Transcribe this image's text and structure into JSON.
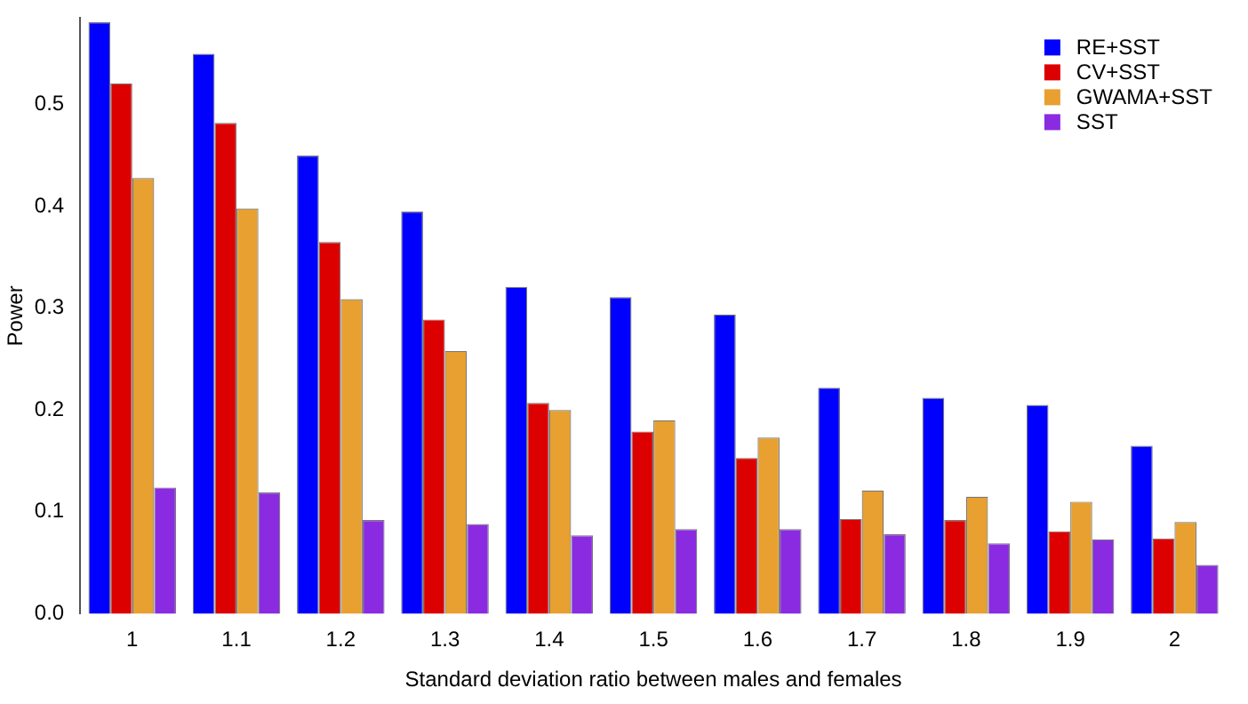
{
  "chart_data": {
    "type": "bar",
    "xlabel": "Standard deviation ratio between males and females",
    "ylabel": "Power",
    "categories": [
      "1",
      "1.1",
      "1.2",
      "1.3",
      "1.4",
      "1.5",
      "1.6",
      "1.7",
      "1.8",
      "1.9",
      "2"
    ],
    "series": [
      {
        "name": "RE+SST",
        "color": "#0000ff",
        "values": [
          0.581,
          0.55,
          0.45,
          0.395,
          0.321,
          0.311,
          0.294,
          0.222,
          0.212,
          0.205,
          0.165
        ]
      },
      {
        "name": "CV+SST",
        "color": "#dd0000",
        "values": [
          0.521,
          0.482,
          0.365,
          0.289,
          0.207,
          0.179,
          0.153,
          0.093,
          0.092,
          0.081,
          0.074
        ]
      },
      {
        "name": "GWAMA+SST",
        "color": "#e8a030",
        "values": [
          0.428,
          0.398,
          0.309,
          0.258,
          0.2,
          0.19,
          0.173,
          0.121,
          0.115,
          0.11,
          0.09
        ]
      },
      {
        "name": "SST",
        "color": "#8a2be2",
        "values": [
          0.124,
          0.119,
          0.092,
          0.088,
          0.077,
          0.083,
          0.083,
          0.078,
          0.069,
          0.073,
          0.048
        ]
      }
    ],
    "ylim": [
      0,
      0.585
    ],
    "yticks": [
      {
        "value": 0,
        "label": "0.0"
      },
      {
        "value": 0.1,
        "label": "0.1"
      },
      {
        "value": 0.2,
        "label": "0.2"
      },
      {
        "value": 0.3,
        "label": "0.3"
      },
      {
        "value": 0.4,
        "label": "0.4"
      },
      {
        "value": 0.5,
        "label": "0.5"
      }
    ],
    "grid": false,
    "legend": "top right"
  }
}
